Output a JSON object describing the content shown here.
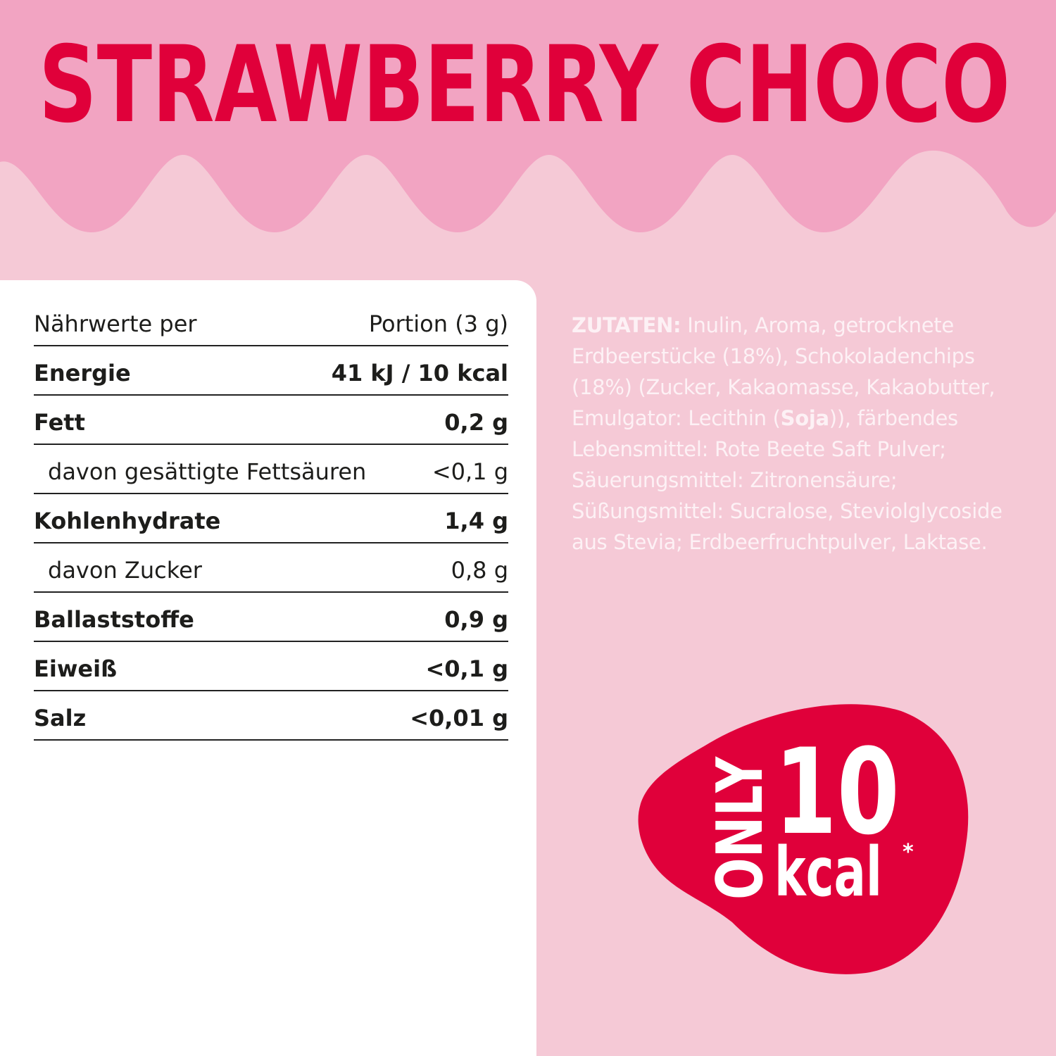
{
  "title": "STRAWBERRY CHOCO",
  "colors": {
    "top_band": "#f2a4c2",
    "background": "#f5c9d6",
    "accent_red": "#e0003a",
    "panel": "#ffffff"
  },
  "nutrition": {
    "header": {
      "label": "Nährwerte per",
      "value": "Portion (3 g)"
    },
    "rows": [
      {
        "label": "Energie",
        "value": "41 kJ / 10 kcal",
        "type": "main"
      },
      {
        "label": "Fett",
        "value": "0,2 g",
        "type": "main"
      },
      {
        "label": "davon gesättigte Fettsäuren",
        "value": "<0,1 g",
        "type": "sub"
      },
      {
        "label": "Kohlenhydrate",
        "value": "1,4 g",
        "type": "main"
      },
      {
        "label": "davon Zucker",
        "value": "0,8 g",
        "type": "sub"
      },
      {
        "label": "Ballaststoffe",
        "value": "0,9 g",
        "type": "main"
      },
      {
        "label": "Eiweiß",
        "value": "<0,1 g",
        "type": "main"
      },
      {
        "label": "Salz",
        "value": "<0,01 g",
        "type": "main"
      }
    ]
  },
  "ingredients": {
    "heading": "ZUTATEN:",
    "text_before_soja": " Inulin, Aroma, getrocknete Erdbeerstücke (18%), Schokoladenchips (18%) (Zucker, Kakaomasse, Kakaobutter, Emulgator: Lecithin (",
    "allergen": "Soja",
    "text_after_soja": ")), färbendes Lebensmittel: Rote Beete Saft Pulver; Säuerungsmittel: Zitronensäure; Süßungsmittel: Sucralose, Steviolglycoside aus Stevia; Erdbeerfruchtpulver, Laktase."
  },
  "badge": {
    "only": "ONLY",
    "number": "10",
    "unit": "kcal",
    "asterisk": "*"
  }
}
